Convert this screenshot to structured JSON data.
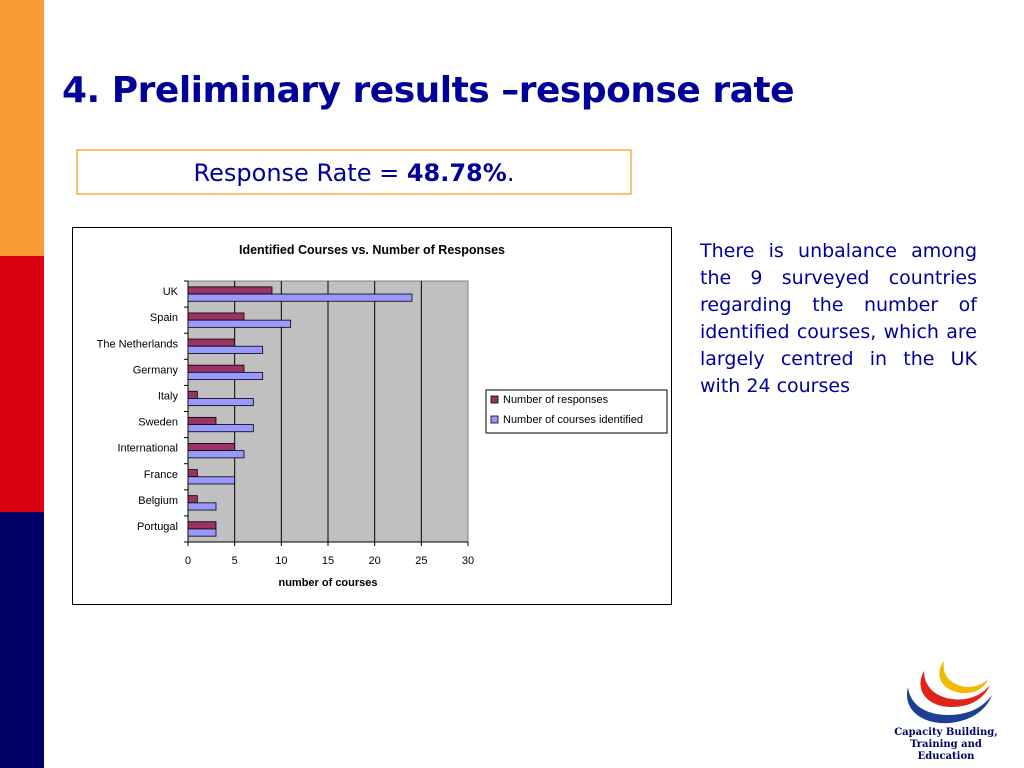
{
  "slide": {
    "title": "4. Preliminary results –response rate",
    "rate_label": "Response Rate = ",
    "rate_value": "48.78%",
    "rate_suffix": ".",
    "side_text": "There is unbalance among the 9 surveyed countries regarding the number of identified courses, which are largely centred in the UK with 24 courses",
    "logo": {
      "line1": "Capacity Building,",
      "line2": "Training and Education"
    }
  },
  "colors": {
    "stripe_orange": "#F99B33",
    "stripe_red": "#D90012",
    "stripe_navy": "#000066",
    "title": "#000099",
    "responses": "#993366",
    "courses": "#9999FF",
    "plot_bg": "#C0C0C0"
  },
  "chart_data": {
    "type": "bar",
    "orientation": "horizontal",
    "title": "Identified Courses vs. Number of Responses",
    "xlabel": "number of courses",
    "ylabel": "",
    "xlim": [
      0,
      30
    ],
    "xticks": [
      0,
      5,
      10,
      15,
      20,
      25,
      30
    ],
    "categories": [
      "UK",
      "Spain",
      "The Netherlands",
      "Germany",
      "Italy",
      "Sweden",
      "International",
      "France",
      "Belgium",
      "Portugal"
    ],
    "series": [
      {
        "name": "Number of responses",
        "values": [
          9,
          6,
          5,
          6,
          1,
          3,
          5,
          1,
          1,
          3
        ]
      },
      {
        "name": "Number of courses identified",
        "values": [
          24,
          11,
          8,
          8,
          7,
          7,
          6,
          5,
          3,
          3
        ]
      }
    ],
    "grid": "vertical",
    "legend_position": "right"
  }
}
